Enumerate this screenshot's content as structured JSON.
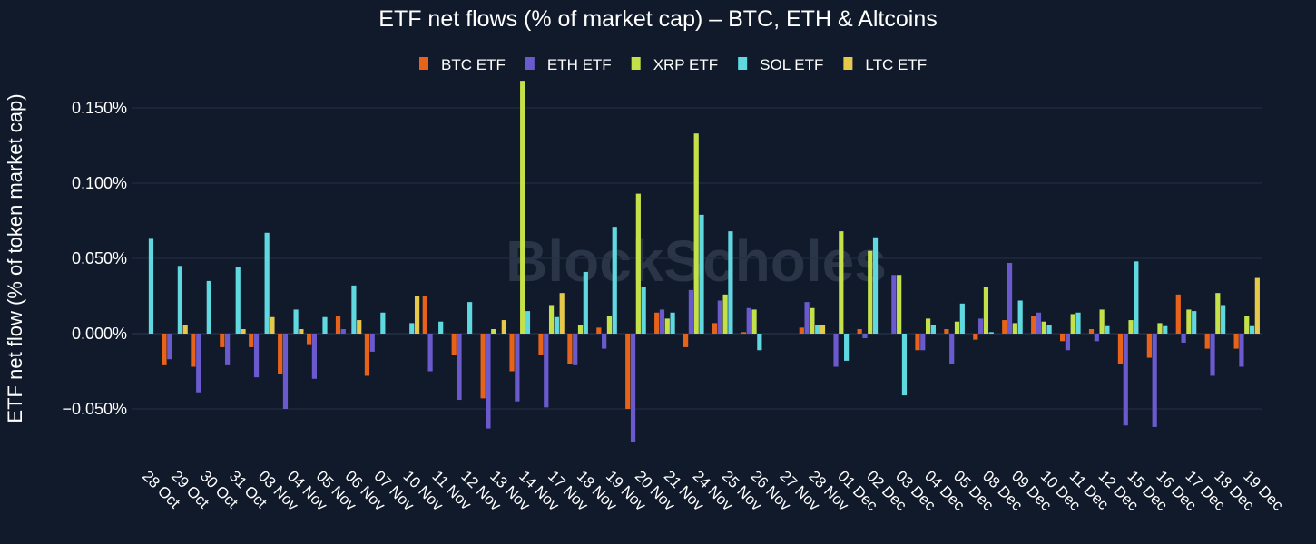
{
  "chart_data": {
    "type": "bar",
    "title": "ETF net flows (% of market cap) – BTC, ETH & Altcoins",
    "xlabel": "",
    "ylabel": "ETF net flow (% of token market cap)",
    "ylim": [
      -0.073,
      0.168
    ],
    "yticks": [
      0.15,
      0.1,
      0.05,
      0.0,
      -0.05
    ],
    "ytick_labels": [
      "0.150%",
      "0.100%",
      "0.050%",
      "0.000%",
      "−0.050%"
    ],
    "grid": true,
    "legend_position": "top",
    "watermark": "BlockScholes",
    "categories": [
      "28 Oct",
      "29 Oct",
      "30 Oct",
      "31 Oct",
      "03 Nov",
      "04 Nov",
      "05 Nov",
      "06 Nov",
      "07 Nov",
      "10 Nov",
      "11 Nov",
      "12 Nov",
      "13 Nov",
      "14 Nov",
      "17 Nov",
      "18 Nov",
      "19 Nov",
      "20 Nov",
      "21 Nov",
      "24 Nov",
      "25 Nov",
      "26 Nov",
      "27 Nov",
      "28 Nov",
      "01 Dec",
      "02 Dec",
      "03 Dec",
      "04 Dec",
      "05 Dec",
      "08 Dec",
      "09 Dec",
      "10 Dec",
      "11 Dec",
      "12 Dec",
      "15 Dec",
      "16 Dec",
      "17 Dec",
      "18 Dec",
      "19 Dec"
    ],
    "series": [
      {
        "name": "BTC ETF",
        "color": "#e8631a",
        "values": [
          0.0,
          -0.021,
          -0.022,
          -0.009,
          -0.009,
          -0.027,
          -0.007,
          0.012,
          -0.028,
          0.0,
          0.025,
          -0.014,
          -0.043,
          -0.025,
          -0.014,
          -0.02,
          0.004,
          -0.05,
          0.014,
          -0.009,
          0.007,
          0.001,
          0.0,
          0.004,
          0.0,
          0.003,
          0.0,
          -0.011,
          0.003,
          -0.004,
          0.009,
          0.012,
          -0.005,
          0.003,
          -0.02,
          -0.016,
          0.026,
          -0.01,
          -0.01
        ]
      },
      {
        "name": "ETH ETF",
        "color": "#6a5acd",
        "values": [
          0.0,
          -0.017,
          -0.039,
          -0.021,
          -0.029,
          -0.05,
          -0.03,
          0.003,
          -0.012,
          0.0,
          -0.025,
          -0.044,
          -0.063,
          -0.045,
          -0.049,
          -0.021,
          -0.01,
          -0.072,
          0.016,
          0.029,
          0.022,
          0.017,
          0.0,
          0.021,
          -0.022,
          -0.003,
          0.039,
          -0.011,
          -0.02,
          0.01,
          0.047,
          0.014,
          -0.011,
          -0.005,
          -0.061,
          -0.062,
          -0.006,
          -0.028,
          -0.022
        ]
      },
      {
        "name": "XRP ETF",
        "color": "#c5e14a",
        "values": [
          0.0,
          0.0,
          0.0,
          0.0,
          0.0,
          0.0,
          0.0,
          0.0,
          0.0,
          0.0,
          0.0,
          0.0,
          0.003,
          0.168,
          0.019,
          0.006,
          0.012,
          0.093,
          0.01,
          0.133,
          0.026,
          0.016,
          0.0,
          0.017,
          0.068,
          0.055,
          0.039,
          0.01,
          0.008,
          0.031,
          0.007,
          0.008,
          0.013,
          0.016,
          0.009,
          0.007,
          0.016,
          0.027,
          0.012
        ]
      },
      {
        "name": "SOL ETF",
        "color": "#5fd8e0",
        "values": [
          0.063,
          0.045,
          0.035,
          0.044,
          0.067,
          0.016,
          0.011,
          0.032,
          0.014,
          0.007,
          0.008,
          0.021,
          0.0,
          0.015,
          0.011,
          0.041,
          0.071,
          0.031,
          0.014,
          0.079,
          0.068,
          -0.011,
          0.0,
          0.006,
          -0.018,
          0.064,
          -0.041,
          0.006,
          0.02,
          0.001,
          0.022,
          0.006,
          0.014,
          0.005,
          0.048,
          0.005,
          0.015,
          0.019,
          0.005
        ]
      },
      {
        "name": "LTC ETF",
        "color": "#e6c84a",
        "values": [
          0.0,
          0.006,
          0.0,
          0.003,
          0.011,
          0.003,
          0.0,
          0.009,
          0.0,
          0.025,
          0.0,
          0.0,
          0.009,
          0.0,
          0.027,
          0.0,
          0.0,
          0.0,
          0.0,
          0.0,
          0.0,
          0.0,
          0.0,
          0.006,
          0.0,
          0.0,
          0.0,
          0.0,
          0.0,
          0.0,
          0.0,
          0.0,
          0.0,
          0.0,
          0.0,
          0.0,
          0.0,
          0.0,
          0.037
        ]
      }
    ]
  }
}
